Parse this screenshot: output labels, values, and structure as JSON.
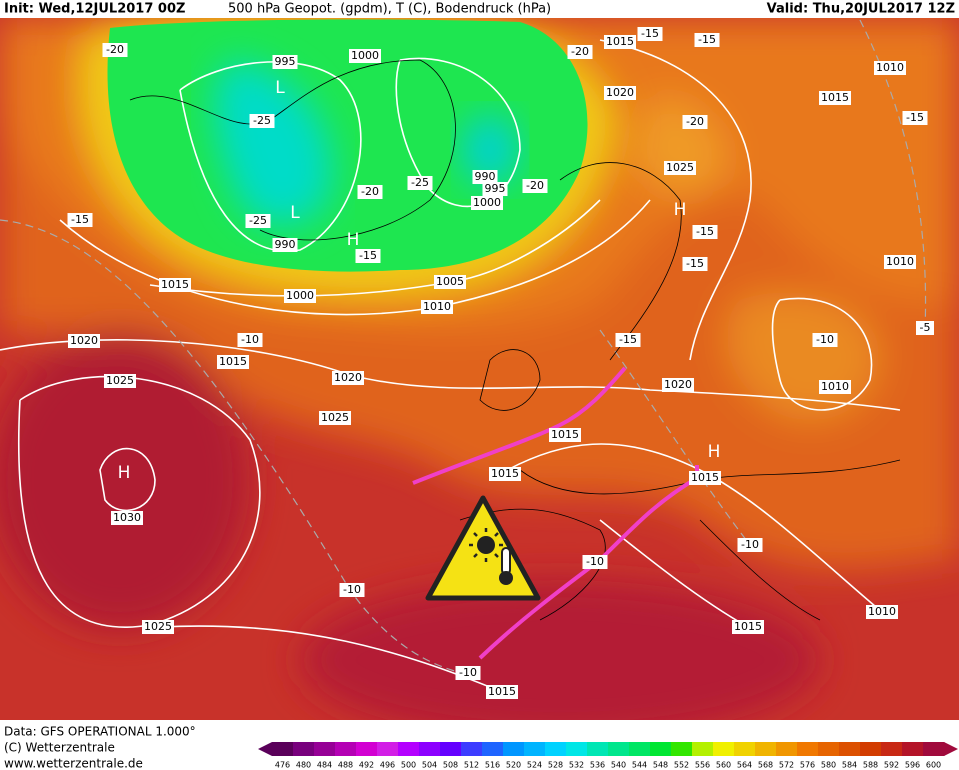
{
  "header": {
    "init": "Init: Wed,12JUL2017 00Z",
    "title": "500 hPa Geopot. (gpdm), T (C), Bodendruck (hPa)",
    "valid": "Valid: Thu,20JUL2017 12Z"
  },
  "footer": {
    "source": "Data: GFS OPERATIONAL 1.000°",
    "copyright": "(C) Wetterzentrale",
    "url": "www.wetterzentrale.de"
  },
  "colorbar": {
    "ticks": [
      476,
      480,
      484,
      488,
      492,
      496,
      500,
      504,
      508,
      512,
      516,
      520,
      524,
      528,
      532,
      536,
      540,
      544,
      548,
      552,
      556,
      560,
      564,
      568,
      572,
      576,
      580,
      584,
      588,
      592,
      596,
      600
    ],
    "colors": [
      "#5a005a",
      "#78007d",
      "#960096",
      "#b400b4",
      "#d200d2",
      "#d21ee6",
      "#b400ff",
      "#8c00ff",
      "#6400ff",
      "#3c3cff",
      "#1e64ff",
      "#0096ff",
      "#00b4ff",
      "#00d2ff",
      "#00e6e6",
      "#00e6b4",
      "#00e68c",
      "#00e664",
      "#00e632",
      "#32e600",
      "#b4f000",
      "#f0f000",
      "#f0d200",
      "#f0b400",
      "#f09600",
      "#f07800",
      "#e66400",
      "#dc5000",
      "#d23c00",
      "#c82814",
      "#b41428",
      "#a00a3c"
    ]
  },
  "labels": [
    "-20",
    "995",
    "1000",
    "L",
    "-25",
    "-20",
    "1015",
    "-15",
    "-15",
    "1010",
    "1015",
    "-15",
    "1020",
    "-20",
    "1025",
    "H",
    "-15",
    "-15",
    "1010",
    "-5",
    "-10",
    "1010",
    "-20",
    "-25",
    "990",
    "995",
    "1000",
    "-20",
    "L",
    "-25",
    "990",
    "H",
    "-15",
    "-15",
    "1015",
    "1000",
    "1005",
    "1010",
    "1020",
    "-10",
    "1015",
    "-15",
    "1020",
    "1020",
    "1025",
    "1025",
    "1015",
    "1015",
    "H",
    "1015",
    "H",
    "1030",
    "-10",
    "-10",
    "-10",
    "1010",
    "1015",
    "1025",
    "-10",
    "1015"
  ]
}
